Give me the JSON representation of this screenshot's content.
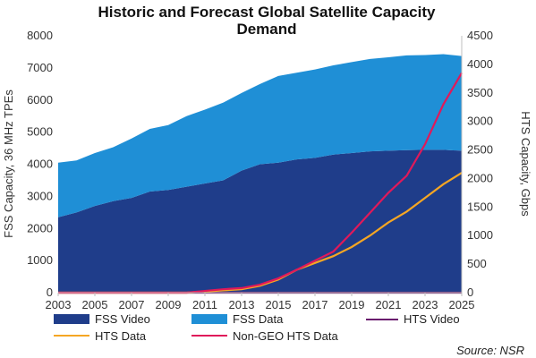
{
  "chart_data": {
    "type": "area",
    "title_lines": [
      "Historic and Forecast Global Satellite Capacity",
      "Demand"
    ],
    "ylabel_left": "FSS Capacity, 36 MHz TPEs",
    "ylabel_right": "HTS Capacity, Gbps",
    "xlabel": "",
    "x": [
      2003,
      2004,
      2005,
      2006,
      2007,
      2008,
      2009,
      2010,
      2011,
      2012,
      2013,
      2014,
      2015,
      2016,
      2017,
      2018,
      2019,
      2020,
      2021,
      2022,
      2023,
      2024,
      2025
    ],
    "x_ticks": [
      "2003",
      "2005",
      "2007",
      "2009",
      "2011",
      "2013",
      "2015",
      "2017",
      "2019",
      "2021",
      "2023",
      "2025"
    ],
    "ylim_left": [
      0,
      8000
    ],
    "yticks_left": [
      "0",
      "1000",
      "2000",
      "3000",
      "4000",
      "5000",
      "6000",
      "7000",
      "8000"
    ],
    "ylim_right": [
      0,
      4500
    ],
    "yticks_right": [
      "0",
      "500",
      "1000",
      "1500",
      "2000",
      "2500",
      "3000",
      "3500",
      "4000",
      "4500"
    ],
    "grid": false,
    "legend_position": "bottom",
    "series": [
      {
        "name": "FSS Video",
        "axis": "left",
        "kind": "area",
        "color": "#1f3d8a",
        "values": [
          2350,
          2500,
          2700,
          2850,
          2950,
          3150,
          3200,
          3300,
          3400,
          3500,
          3800,
          4000,
          4050,
          4150,
          4200,
          4300,
          4350,
          4400,
          4420,
          4440,
          4450,
          4450,
          4420
        ]
      },
      {
        "name": "FSS Data",
        "axis": "left",
        "kind": "area",
        "color": "#1f8fd6",
        "values": [
          1700,
          1620,
          1650,
          1680,
          1850,
          1950,
          2020,
          2200,
          2300,
          2420,
          2420,
          2500,
          2700,
          2700,
          2750,
          2780,
          2830,
          2880,
          2910,
          2950,
          2950,
          2980,
          2950
        ]
      },
      {
        "name": "HTS Video",
        "axis": "right",
        "kind": "line",
        "color": "#6a1b6e",
        "values": [
          0,
          0,
          0,
          0,
          0,
          0,
          0,
          0,
          0,
          0,
          0,
          0,
          0,
          0,
          0,
          0,
          0,
          0,
          0,
          0,
          0,
          0,
          0
        ]
      },
      {
        "name": "HTS Data",
        "axis": "right",
        "kind": "line",
        "color": "#f5a623",
        "values": [
          0,
          0,
          0,
          0,
          0,
          0,
          0,
          0,
          20,
          40,
          60,
          120,
          230,
          400,
          520,
          640,
          800,
          1000,
          1230,
          1420,
          1660,
          1900,
          2100
        ]
      },
      {
        "name": "Non-GEO HTS Data",
        "axis": "right",
        "kind": "line",
        "color": "#e0195a",
        "values": [
          0,
          0,
          0,
          0,
          0,
          0,
          0,
          0,
          30,
          60,
          80,
          140,
          250,
          400,
          560,
          720,
          1050,
          1400,
          1750,
          2050,
          2600,
          3300,
          3850
        ]
      }
    ],
    "source": "Source: NSR"
  },
  "legend": {
    "items": [
      "FSS Video",
      "FSS Data",
      "HTS Video",
      "HTS Data",
      "Non-GEO HTS Data"
    ]
  }
}
